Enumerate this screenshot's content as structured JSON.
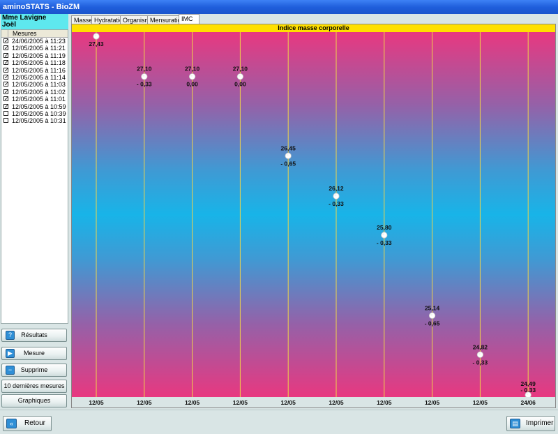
{
  "window": {
    "title": "aminoSTATS - BioZM"
  },
  "patient": {
    "line1": "Mme Lavigne",
    "line2": "Joël"
  },
  "list": {
    "header": "Mesures",
    "items": [
      {
        "label": "24/06/2005 à 11:23",
        "checked": true
      },
      {
        "label": "12/05/2005 à 11:21",
        "checked": true
      },
      {
        "label": "12/05/2005 à 11:19",
        "checked": true
      },
      {
        "label": "12/05/2005 à 11:18",
        "checked": true
      },
      {
        "label": "12/05/2005 à 11:16",
        "checked": true
      },
      {
        "label": "12/05/2005 à 11:14",
        "checked": true
      },
      {
        "label": "12/05/2005 à 11:03",
        "checked": true
      },
      {
        "label": "12/05/2005 à 11:02",
        "checked": true
      },
      {
        "label": "12/05/2005 à 11:01",
        "checked": true
      },
      {
        "label": "12/05/2005 à 10:59",
        "checked": true
      },
      {
        "label": "12/05/2005 à 10:39",
        "checked": false
      },
      {
        "label": "12/05/2005 à 10:31",
        "checked": false
      }
    ]
  },
  "sidebar_buttons": {
    "resultats": "Résultats",
    "mesure": "Mesure",
    "supprime": "Supprime",
    "dernieres": "10 dernières mesures",
    "graphiques": "Graphiques"
  },
  "tabs": [
    {
      "label": "Masses",
      "active": false
    },
    {
      "label": "Hydratation",
      "active": false
    },
    {
      "label": "Organisme",
      "active": false
    },
    {
      "label": "Mensurations",
      "active": false
    },
    {
      "label": "IMC",
      "active": true
    }
  ],
  "chart_data": {
    "type": "line",
    "title": "Indice masse corporelle",
    "categories": [
      "12/05",
      "12/05",
      "12/05",
      "12/05",
      "12/05",
      "12/05",
      "12/05",
      "12/05",
      "12/05",
      "24/06"
    ],
    "values": [
      27.43,
      27.1,
      27.1,
      27.1,
      26.45,
      26.12,
      25.8,
      25.14,
      24.82,
      24.49
    ],
    "value_labels": [
      "27,43",
      "27,10",
      "27,10",
      "27,10",
      "26,45",
      "26,12",
      "25,80",
      "25,14",
      "24,82",
      "24,49"
    ],
    "delta_labels": [
      "",
      "- 0,33",
      "0,00",
      "0,00",
      "- 0,65",
      "- 0,33",
      "- 0,33",
      "- 0,65",
      "- 0,33",
      "- 0,33"
    ],
    "ylim": [
      24.49,
      27.43
    ],
    "grid": "vertical",
    "colors": {
      "gridline": "#f0d44a",
      "title_bg": "#ffe000",
      "top": "#e83880",
      "middle": "#18b4e8"
    }
  },
  "bottom_buttons": {
    "retour": "Retour",
    "imprimer": "Imprimer"
  }
}
